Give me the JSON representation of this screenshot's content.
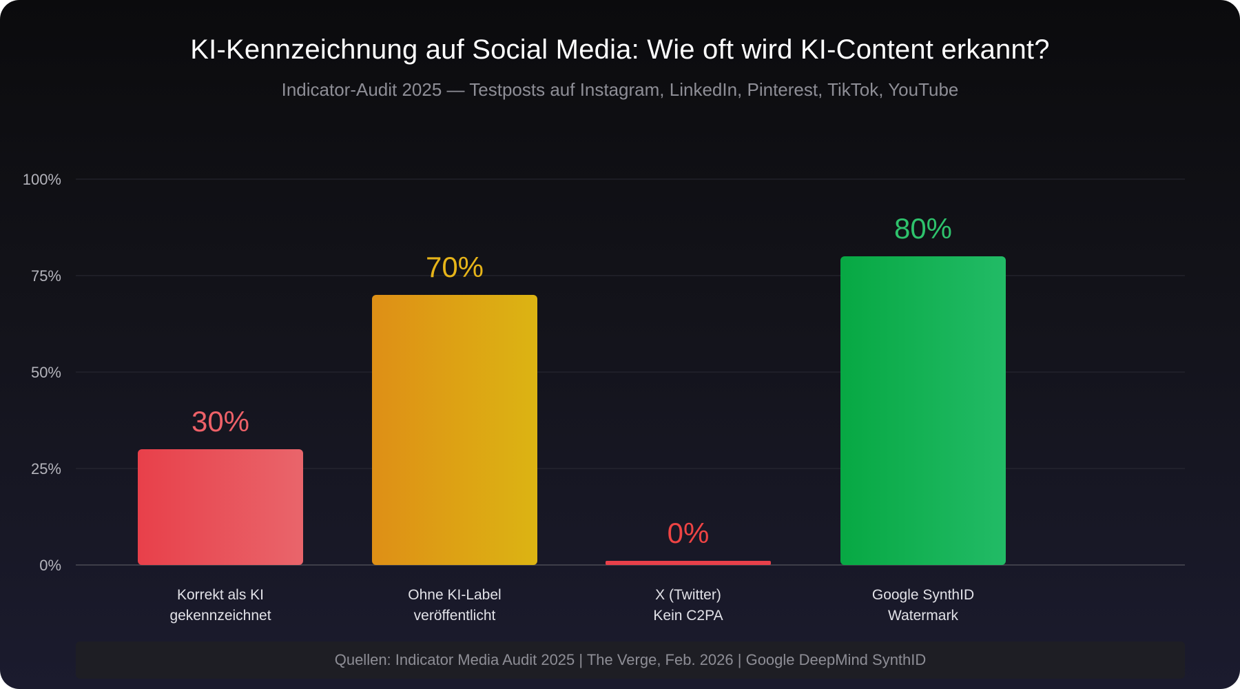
{
  "title": "KI-Kennzeichnung auf Social Media: Wie oft wird KI-Content erkannt?",
  "subtitle": "Indicator-Audit 2025 — Testposts auf Instagram, LinkedIn, Pinterest, TikTok, YouTube",
  "footer": "Quellen: Indicator Media Audit 2025 | The Verge, Feb. 2026 | Google DeepMind SynthID",
  "chart_data": {
    "type": "bar",
    "title": "KI-Kennzeichnung auf Social Media: Wie oft wird KI-Content erkannt?",
    "xlabel": "",
    "ylabel": "",
    "ylim": [
      0,
      100
    ],
    "grid": true,
    "yticks": [
      0,
      25,
      50,
      75,
      100
    ],
    "ytick_labels": [
      "0%",
      "25%",
      "50%",
      "75%",
      "100%"
    ],
    "categories": [
      [
        "Korrekt als KI",
        "gekennzeichnet"
      ],
      [
        "Ohne KI-Label",
        "veröffentlicht"
      ],
      [
        "X (Twitter)",
        "Kein C2PA"
      ],
      [
        "Google SynthID",
        "Watermark"
      ]
    ],
    "values": [
      30,
      70,
      0,
      80
    ],
    "value_labels": [
      "30%",
      "70%",
      "0%",
      "80%"
    ],
    "colors": [
      [
        "#e8404a",
        "#e9656b"
      ],
      [
        "#de8f16",
        "#dcb413"
      ],
      [
        "#e8404a",
        "#e8404a"
      ],
      [
        "#07a843",
        "#22bb66"
      ]
    ],
    "label_colors": [
      "#ee6168",
      "#e6b419",
      "#ee4444",
      "#2ec26c"
    ]
  }
}
